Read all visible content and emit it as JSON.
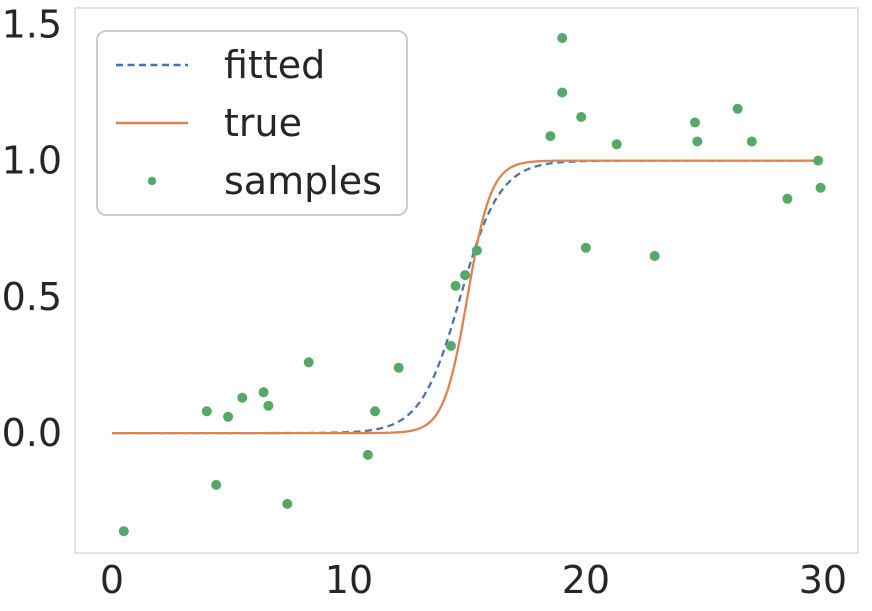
{
  "colors": {
    "background": "#ffffff",
    "text": "#262626",
    "axes_border": "#d9d9d9",
    "legend_border": "#cccccc",
    "fitted": "#4c72b0",
    "true": "#dd8452",
    "samples": "#55a868"
  },
  "chart_data": {
    "type": "mixed",
    "title": "",
    "xlabel": "",
    "ylabel": "",
    "xlim": [
      -1.56,
      31.48
    ],
    "ylim": [
      -0.44,
      1.56
    ],
    "x_ticks": [
      0,
      10,
      20,
      30
    ],
    "x_tick_labels": [
      "0",
      "10",
      "20",
      "30"
    ],
    "y_ticks": [
      0.0,
      0.5,
      1.0,
      1.5
    ],
    "y_tick_labels": [
      "0.0",
      "0.5",
      "1.0",
      "1.5"
    ],
    "grid": false,
    "legend_position": "upper left",
    "series": [
      {
        "name": "fitted",
        "type": "line",
        "line_style": "dashed",
        "color": "#4c72b0",
        "curve": "sigmoid",
        "formula": "y = 1 / (1 + exp(-k*(x - x0)))",
        "x0": 14.7,
        "k": 1.2,
        "x_range": [
          0,
          30
        ]
      },
      {
        "name": "true",
        "type": "line",
        "line_style": "solid",
        "color": "#dd8452",
        "curve": "sigmoid",
        "formula": "y = 1 / (1 + exp(-k*(x - x0)))",
        "x0": 15.0,
        "k": 2.0,
        "x_range": [
          0,
          30
        ]
      },
      {
        "name": "samples",
        "type": "scatter",
        "color": "#55a868",
        "marker": "dot",
        "points": [
          [
            0.5,
            -0.36
          ],
          [
            4.0,
            0.08
          ],
          [
            4.4,
            -0.19
          ],
          [
            4.9,
            0.06
          ],
          [
            5.5,
            0.13
          ],
          [
            6.4,
            0.15
          ],
          [
            6.6,
            0.1
          ],
          [
            7.4,
            -0.26
          ],
          [
            8.3,
            0.26
          ],
          [
            10.8,
            -0.08
          ],
          [
            11.1,
            0.08
          ],
          [
            12.1,
            0.24
          ],
          [
            14.3,
            0.32
          ],
          [
            14.5,
            0.54
          ],
          [
            14.9,
            0.58
          ],
          [
            15.4,
            0.67
          ],
          [
            18.5,
            1.09
          ],
          [
            19.0,
            1.45
          ],
          [
            19.0,
            1.25
          ],
          [
            19.8,
            1.16
          ],
          [
            20.0,
            0.68
          ],
          [
            21.3,
            1.06
          ],
          [
            22.9,
            0.65
          ],
          [
            24.6,
            1.14
          ],
          [
            24.7,
            1.07
          ],
          [
            26.4,
            1.19
          ],
          [
            27.0,
            1.07
          ],
          [
            28.5,
            0.86
          ],
          [
            29.8,
            1.0
          ],
          [
            29.9,
            0.9
          ]
        ]
      }
    ]
  }
}
